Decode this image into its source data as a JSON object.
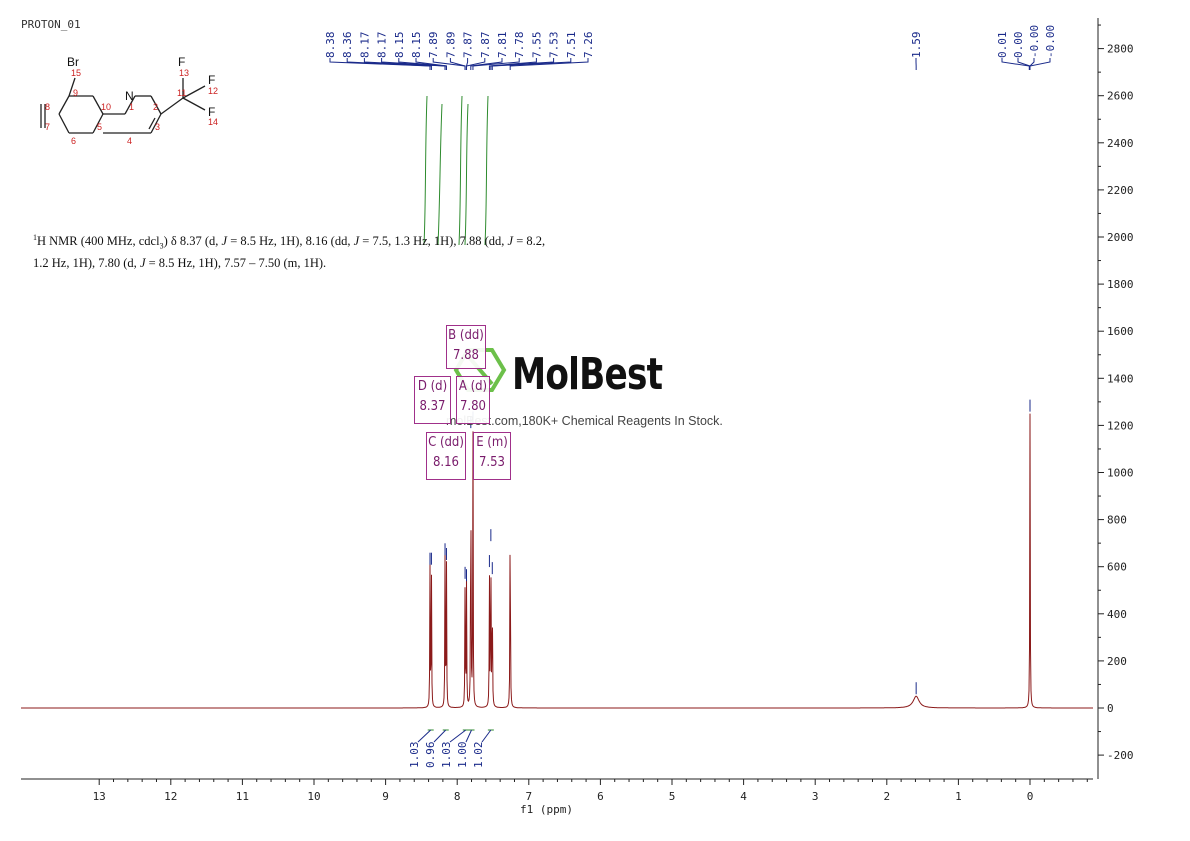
{
  "title": "PROTON_01",
  "description": {
    "line1_parts": [
      "1",
      "H NMR (400 MHz, cdcl",
      "3",
      ") δ 8.37 (d, ",
      "J",
      " = 8.5 Hz, 1H), 8.16 (dd, ",
      "J",
      " = 7.5, 1.3 Hz, 1H), 7.88 (dd, ",
      "J",
      " = 8.2,"
    ],
    "line2_parts": [
      "1.2 Hz, 1H), 7.80 (d, ",
      "J",
      " = 8.5 Hz, 1H), 7.57 – 7.50 (m, 1H)."
    ]
  },
  "watermark": {
    "brand": "MolBest",
    "tagline": "molBest.com,180K+ Chemical Reagents In Stock."
  },
  "molecule": {
    "atoms": [
      "Br",
      "F",
      "F",
      "F",
      "N"
    ],
    "numbers": [
      "15",
      "13",
      "12",
      "14",
      "11",
      "9",
      "10",
      "1",
      "2",
      "8",
      "7",
      "6",
      "5",
      "4",
      "3"
    ]
  },
  "peak_boxes": [
    {
      "label": "B (dd)",
      "value": "7.88"
    },
    {
      "label": "D (d)",
      "value": "8.37"
    },
    {
      "label": "A (d)",
      "value": "7.80"
    },
    {
      "label": "C (dd)",
      "value": "8.16"
    },
    {
      "label": "E (m)",
      "value": "7.53"
    }
  ],
  "top_peak_labels": [
    "8.38",
    "8.36",
    "8.17",
    "8.17",
    "8.15",
    "8.15",
    "7.89",
    "7.89",
    "7.87",
    "7.87",
    "7.81",
    "7.78",
    "7.55",
    "7.53",
    "7.51",
    "7.26"
  ],
  "top_peak_labels_right": [
    "1.59",
    "0.01",
    "0.00",
    "-0.00",
    "-0.00"
  ],
  "integrals": [
    "1.03",
    "0.96",
    "1.03",
    "1.00",
    "1.02"
  ],
  "colors": {
    "spectrum": "#8b1a1a",
    "integral": "#2e8b2e",
    "peak_label": "#1a2a8a",
    "box": "#a0308a",
    "logo": "#6cc04a"
  },
  "chart_data": {
    "type": "line",
    "title": "PROTON_01",
    "xlabel": "f1 (ppm)",
    "ylabel": "",
    "xlim": [
      14.0,
      -0.9
    ],
    "x_reversed": true,
    "ylim": [
      -300,
      2900
    ],
    "x_ticks": [
      13,
      12,
      11,
      10,
      9,
      8,
      7,
      6,
      5,
      4,
      3,
      2,
      1,
      0
    ],
    "y_ticks": [
      -200,
      0,
      200,
      400,
      600,
      800,
      1000,
      1200,
      1400,
      1600,
      1800,
      2000,
      2200,
      2400,
      2600,
      2800
    ],
    "peaks": [
      {
        "ppm": 8.38,
        "intensity": 600
      },
      {
        "ppm": 8.36,
        "intensity": 600
      },
      {
        "ppm": 8.17,
        "intensity": 640
      },
      {
        "ppm": 8.15,
        "intensity": 620
      },
      {
        "ppm": 7.89,
        "intensity": 540
      },
      {
        "ppm": 7.87,
        "intensity": 530
      },
      {
        "ppm": 7.81,
        "intensity": 1180
      },
      {
        "ppm": 7.78,
        "intensity": 1200
      },
      {
        "ppm": 7.55,
        "intensity": 590
      },
      {
        "ppm": 7.53,
        "intensity": 700
      },
      {
        "ppm": 7.51,
        "intensity": 560
      },
      {
        "ppm": 7.26,
        "intensity": 1000
      },
      {
        "ppm": 1.59,
        "intensity": 50
      },
      {
        "ppm": 0.0,
        "intensity": 1250
      }
    ],
    "integral_regions": [
      {
        "ppm": 8.37,
        "value": 1.03
      },
      {
        "ppm": 8.16,
        "value": 0.96
      },
      {
        "ppm": 7.88,
        "value": 1.03
      },
      {
        "ppm": 7.8,
        "value": 1.0
      },
      {
        "ppm": 7.53,
        "value": 1.02
      }
    ]
  }
}
